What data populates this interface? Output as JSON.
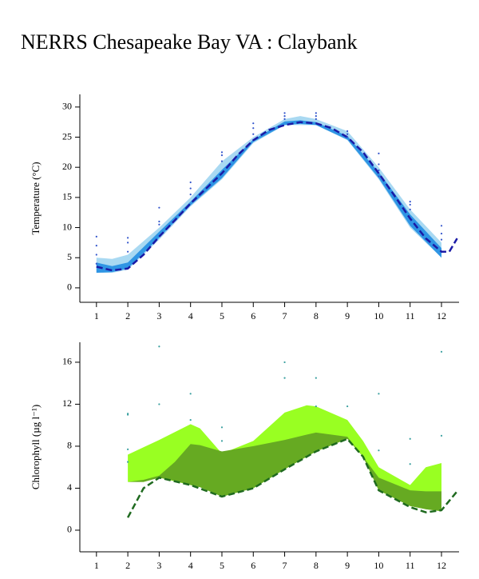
{
  "title": "NERRS Chesapeake Bay VA : Claybank",
  "chart_data": [
    {
      "type": "line",
      "ylabel": "Temperature (°C)",
      "xlim": [
        0.47,
        12.56
      ],
      "xticks": [
        1,
        2,
        3,
        4,
        5,
        6,
        7,
        8,
        9,
        10,
        11,
        12
      ],
      "ylim": [
        -2.4,
        32.1
      ],
      "yticks": [
        0,
        5,
        10,
        15,
        20,
        25,
        30
      ],
      "bands": [
        {
          "color": "#a9d9f2",
          "x": [
            1,
            1.5,
            2,
            3,
            4,
            5,
            6,
            7,
            7.5,
            8,
            9,
            10,
            11,
            12
          ],
          "low": [
            2.5,
            2.5,
            3,
            8,
            13.5,
            18,
            24,
            27,
            27,
            27,
            24.5,
            18,
            10,
            5
          ],
          "high": [
            5,
            4.8,
            5.5,
            10,
            15,
            21,
            25,
            28,
            28.5,
            28,
            26,
            20,
            13,
            7.5
          ]
        },
        {
          "color": "#2f95e4",
          "x": [
            1,
            1.5,
            2,
            3,
            4,
            5,
            6,
            7,
            7.5,
            8,
            9,
            10,
            11,
            12
          ],
          "low": [
            2.5,
            2.6,
            3.2,
            8.3,
            13.7,
            18.2,
            24.2,
            27,
            27.2,
            27,
            24.6,
            18.2,
            10.3,
            5
          ],
          "high": [
            4.2,
            3.6,
            4.2,
            9.3,
            14.3,
            19.6,
            24.6,
            27.6,
            27.8,
            27.5,
            25.2,
            19.2,
            12.2,
            6.6
          ]
        }
      ],
      "line": {
        "color": "#1a1aa6",
        "x": [
          1,
          1.5,
          2,
          2.5,
          3,
          3.5,
          4,
          4.5,
          5,
          5.5,
          6,
          6.5,
          7,
          7.5,
          8,
          8.5,
          9,
          9.5,
          10,
          10.5,
          11,
          11.5,
          12,
          12.25,
          12.5
        ],
        "values": [
          3.5,
          2.9,
          3.2,
          5.5,
          8.5,
          11.2,
          14,
          16.5,
          19,
          22,
          24.5,
          26.2,
          27,
          27.5,
          27.3,
          26.5,
          25,
          22.5,
          19,
          15.3,
          11.5,
          8.2,
          6,
          6,
          8.2
        ]
      },
      "points": {
        "color": "#3355cc",
        "x": [
          1,
          1,
          1,
          1,
          2,
          2,
          2,
          3,
          3,
          3,
          4,
          4,
          4,
          5,
          5,
          5,
          6,
          6,
          6,
          7,
          7,
          7,
          8,
          8,
          8,
          9,
          9,
          9,
          10,
          10,
          10,
          10,
          11,
          11,
          11,
          12,
          12,
          12
        ],
        "values": [
          4,
          5.5,
          7,
          8.5,
          6,
          7.5,
          8.3,
          10.5,
          11,
          13.3,
          15.5,
          16.5,
          17.5,
          21,
          22,
          22.5,
          25.5,
          26.5,
          27.3,
          28,
          28.5,
          29,
          28,
          28.5,
          29,
          25,
          25.5,
          26,
          18.5,
          19.5,
          20.5,
          22.3,
          13,
          13.8,
          14.3,
          8,
          9,
          10.3
        ]
      }
    },
    {
      "type": "line",
      "ylabel": "Chlorophyll (µg l⁻¹)",
      "xlim": [
        0.47,
        12.56
      ],
      "xticks": [
        1,
        2,
        3,
        4,
        5,
        6,
        7,
        8,
        9,
        10,
        11,
        12
      ],
      "ylim": [
        -2.06,
        17.9
      ],
      "yticks": [
        0,
        4,
        8,
        12,
        16
      ],
      "bands": [
        {
          "color": "#99ff22",
          "x": [
            2,
            2.5,
            3,
            4,
            4.3,
            5,
            6,
            7,
            7.7,
            8,
            9,
            9.5,
            10,
            11,
            11.5,
            12
          ],
          "low": [
            4.6,
            4.6,
            5,
            4.3,
            4.1,
            3.2,
            4,
            5.8,
            7,
            7.5,
            8.7,
            7,
            3.8,
            2.3,
            2,
            1.8
          ],
          "high": [
            7.2,
            7.9,
            8.6,
            10.1,
            9.7,
            7.3,
            8.5,
            11.2,
            11.9,
            11.8,
            10.5,
            8.5,
            6,
            4.3,
            6,
            6.4
          ]
        },
        {
          "color": "#66aa22",
          "x": [
            2,
            2.5,
            3,
            3.5,
            4,
            4.3,
            5,
            6,
            7,
            7.7,
            8,
            9,
            9.5,
            10,
            11,
            11.5,
            12
          ],
          "low": [
            4.6,
            4.6,
            5,
            4.7,
            4.3,
            4.1,
            3.2,
            4,
            5.8,
            7,
            7.5,
            8.7,
            7,
            3.8,
            2.3,
            2,
            1.8
          ],
          "high": [
            4.6,
            4.8,
            5.2,
            6.5,
            8.2,
            8.1,
            7.5,
            8,
            8.6,
            9.1,
            9.3,
            8.9,
            7,
            5,
            3.8,
            3.7,
            3.7
          ]
        }
      ],
      "line": {
        "color": "#1f6a1f",
        "x": [
          2,
          2.5,
          3,
          4,
          5,
          6,
          7,
          8,
          9,
          9.5,
          10,
          11,
          11.5,
          12,
          12.5
        ],
        "values": [
          1.2,
          4,
          5,
          4.3,
          3.2,
          4,
          5.8,
          7.5,
          8.7,
          7,
          3.8,
          2.2,
          1.7,
          1.9,
          3.7
        ]
      },
      "points": {
        "color": "#3aa0a0",
        "x": [
          2,
          2,
          2,
          2,
          3,
          3,
          4,
          4,
          5,
          5,
          7,
          7,
          8,
          8,
          9,
          10,
          10,
          11,
          11,
          12,
          12
        ],
        "values": [
          6.5,
          7.7,
          11,
          11.1,
          12,
          17.5,
          10.5,
          13,
          8.5,
          9.8,
          14.5,
          16,
          11.8,
          14.5,
          11.8,
          7.6,
          13,
          6.3,
          8.7,
          9,
          17
        ]
      }
    }
  ]
}
